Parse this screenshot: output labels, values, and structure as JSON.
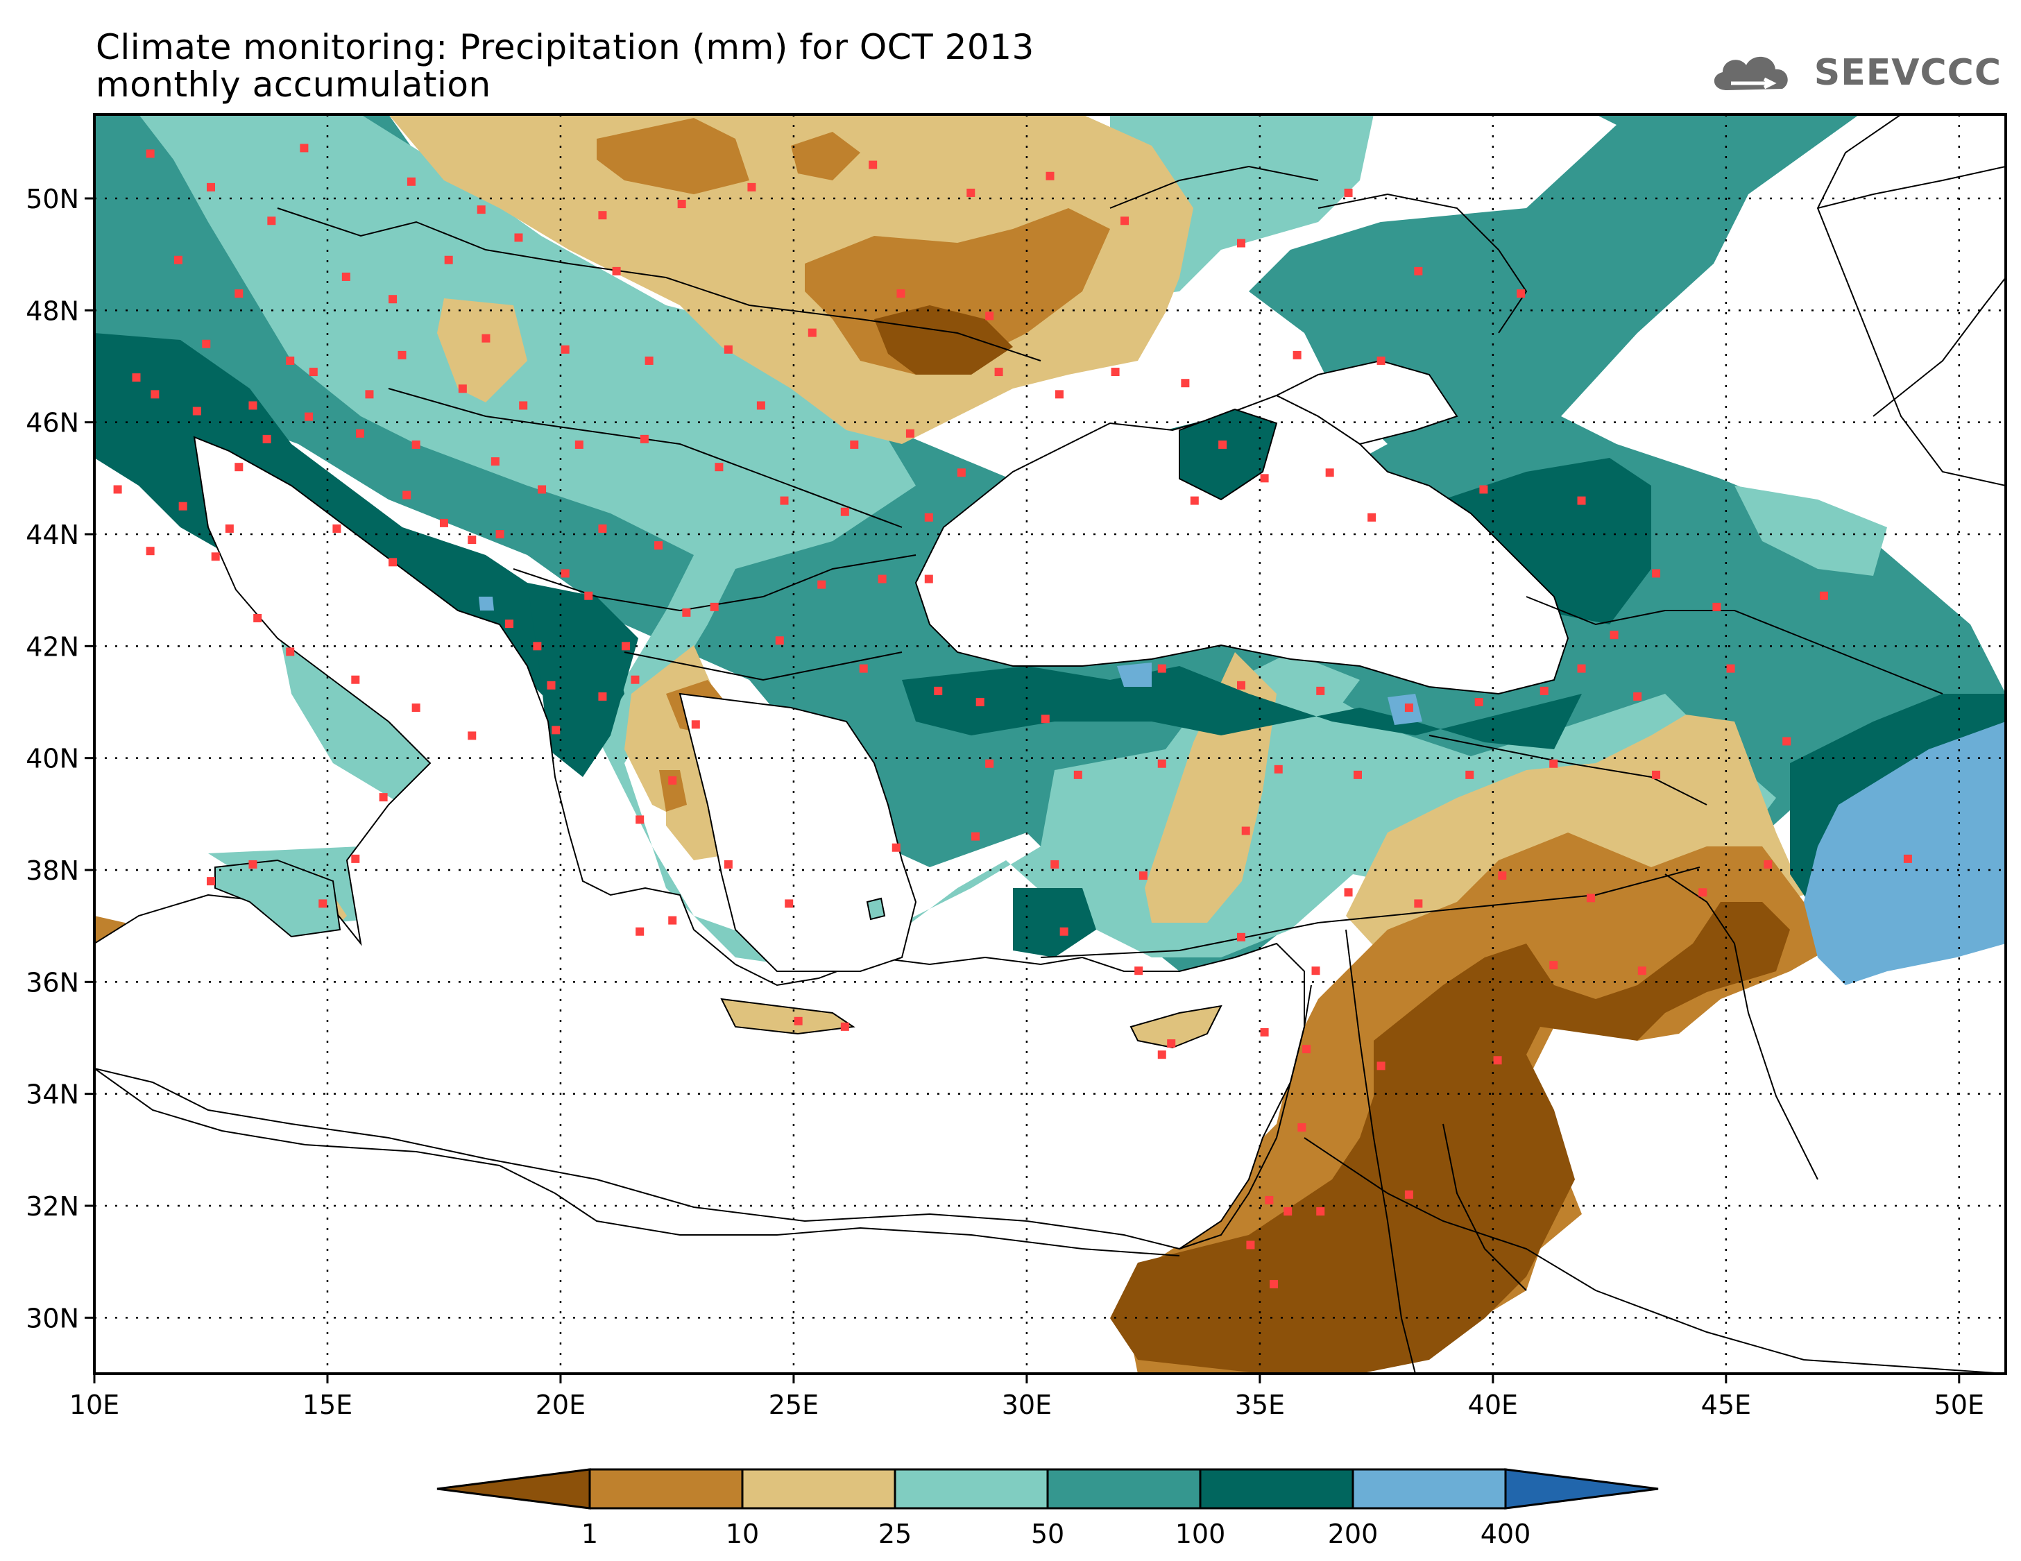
{
  "title": {
    "line1": "Climate monitoring: Precipitation (mm) for OCT 2013",
    "line2": "monthly accumulation"
  },
  "logo": {
    "text": "SEEVCCC",
    "icon": "cloud-icon"
  },
  "map": {
    "lon_range": [
      10,
      51
    ],
    "lat_range": [
      29,
      51.5
    ],
    "x_ticks": [
      {
        "value": 10,
        "label": "10E"
      },
      {
        "value": 15,
        "label": "15E"
      },
      {
        "value": 20,
        "label": "20E"
      },
      {
        "value": 25,
        "label": "25E"
      },
      {
        "value": 30,
        "label": "30E"
      },
      {
        "value": 35,
        "label": "35E"
      },
      {
        "value": 40,
        "label": "40E"
      },
      {
        "value": 45,
        "label": "45E"
      },
      {
        "value": 50,
        "label": "50E"
      }
    ],
    "y_ticks": [
      {
        "value": 30,
        "label": "30N"
      },
      {
        "value": 32,
        "label": "32N"
      },
      {
        "value": 34,
        "label": "34N"
      },
      {
        "value": 36,
        "label": "36N"
      },
      {
        "value": 38,
        "label": "38N"
      },
      {
        "value": 40,
        "label": "40N"
      },
      {
        "value": 42,
        "label": "42N"
      },
      {
        "value": 44,
        "label": "44N"
      },
      {
        "value": 46,
        "label": "46N"
      },
      {
        "value": 48,
        "label": "48N"
      },
      {
        "value": 50,
        "label": "50N"
      }
    ],
    "grid": "dotted",
    "station_color": "#ff4040",
    "stations": [
      [
        11.2,
        50.8
      ],
      [
        12.5,
        50.2
      ],
      [
        13.8,
        49.6
      ],
      [
        14.5,
        50.9
      ],
      [
        16.8,
        50.3
      ],
      [
        18.3,
        49.8
      ],
      [
        11.8,
        48.9
      ],
      [
        13.1,
        48.3
      ],
      [
        15.4,
        48.6
      ],
      [
        16.4,
        48.2
      ],
      [
        17.6,
        48.9
      ],
      [
        19.1,
        49.3
      ],
      [
        20.9,
        49.7
      ],
      [
        22.6,
        49.9
      ],
      [
        21.2,
        48.7
      ],
      [
        24.1,
        50.2
      ],
      [
        26.7,
        50.6
      ],
      [
        28.8,
        50.1
      ],
      [
        30.5,
        50.4
      ],
      [
        32.1,
        49.6
      ],
      [
        34.6,
        49.2
      ],
      [
        36.9,
        50.1
      ],
      [
        38.4,
        48.7
      ],
      [
        40.6,
        48.3
      ],
      [
        27.3,
        48.3
      ],
      [
        29.2,
        47.9
      ],
      [
        30.7,
        46.5
      ],
      [
        33.4,
        46.7
      ],
      [
        35.8,
        47.2
      ],
      [
        37.6,
        47.1
      ],
      [
        25.4,
        47.6
      ],
      [
        23.6,
        47.3
      ],
      [
        21.9,
        47.1
      ],
      [
        20.1,
        47.3
      ],
      [
        18.4,
        47.5
      ],
      [
        16.6,
        47.2
      ],
      [
        14.2,
        47.1
      ],
      [
        12.4,
        47.4
      ],
      [
        11.3,
        46.5
      ],
      [
        13.4,
        46.3
      ],
      [
        14.6,
        46.1
      ],
      [
        15.7,
        45.8
      ],
      [
        16.9,
        45.6
      ],
      [
        18.6,
        45.3
      ],
      [
        20.4,
        45.6
      ],
      [
        21.8,
        45.7
      ],
      [
        23.4,
        45.2
      ],
      [
        24.8,
        44.6
      ],
      [
        26.1,
        44.4
      ],
      [
        27.9,
        44.3
      ],
      [
        28.6,
        45.1
      ],
      [
        19.6,
        44.8
      ],
      [
        20.9,
        44.1
      ],
      [
        22.1,
        43.8
      ],
      [
        18.1,
        43.9
      ],
      [
        16.4,
        43.5
      ],
      [
        15.2,
        44.1
      ],
      [
        13.1,
        45.2
      ],
      [
        11.9,
        44.5
      ],
      [
        12.6,
        43.6
      ],
      [
        13.5,
        42.5
      ],
      [
        14.2,
        41.9
      ],
      [
        15.6,
        41.4
      ],
      [
        16.9,
        40.9
      ],
      [
        18.1,
        40.4
      ],
      [
        16.2,
        39.3
      ],
      [
        15.6,
        38.2
      ],
      [
        13.4,
        38.1
      ],
      [
        14.9,
        37.4
      ],
      [
        12.5,
        37.8
      ],
      [
        18.9,
        42.4
      ],
      [
        19.5,
        42.0
      ],
      [
        20.6,
        42.9
      ],
      [
        21.4,
        42.0
      ],
      [
        22.7,
        42.6
      ],
      [
        23.3,
        42.7
      ],
      [
        24.7,
        42.1
      ],
      [
        25.6,
        43.1
      ],
      [
        26.9,
        43.2
      ],
      [
        27.9,
        43.2
      ],
      [
        20.9,
        41.1
      ],
      [
        21.6,
        41.4
      ],
      [
        22.9,
        40.6
      ],
      [
        22.4,
        39.6
      ],
      [
        21.7,
        38.9
      ],
      [
        23.6,
        38.1
      ],
      [
        22.4,
        37.1
      ],
      [
        24.9,
        37.4
      ],
      [
        21.7,
        36.9
      ],
      [
        25.1,
        35.3
      ],
      [
        26.1,
        35.2
      ],
      [
        19.9,
        40.5
      ],
      [
        19.8,
        41.3
      ],
      [
        26.5,
        41.6
      ],
      [
        28.1,
        41.2
      ],
      [
        29.0,
        41.0
      ],
      [
        30.4,
        40.7
      ],
      [
        32.9,
        41.6
      ],
      [
        34.6,
        41.3
      ],
      [
        36.3,
        41.2
      ],
      [
        38.2,
        40.9
      ],
      [
        39.7,
        41.0
      ],
      [
        41.1,
        41.2
      ],
      [
        43.1,
        41.1
      ],
      [
        29.2,
        39.9
      ],
      [
        31.1,
        39.7
      ],
      [
        32.9,
        39.9
      ],
      [
        35.4,
        39.8
      ],
      [
        37.1,
        39.7
      ],
      [
        39.5,
        39.7
      ],
      [
        41.3,
        39.9
      ],
      [
        43.5,
        39.7
      ],
      [
        27.2,
        38.4
      ],
      [
        28.9,
        38.6
      ],
      [
        30.6,
        38.1
      ],
      [
        32.5,
        37.9
      ],
      [
        34.7,
        38.7
      ],
      [
        36.9,
        37.6
      ],
      [
        38.4,
        37.4
      ],
      [
        40.2,
        37.9
      ],
      [
        42.1,
        37.5
      ],
      [
        30.8,
        36.9
      ],
      [
        32.4,
        36.2
      ],
      [
        34.6,
        36.8
      ],
      [
        36.2,
        36.2
      ],
      [
        35.1,
        35.1
      ],
      [
        36.0,
        34.8
      ],
      [
        35.9,
        33.4
      ],
      [
        35.2,
        32.1
      ],
      [
        35.6,
        31.9
      ],
      [
        34.8,
        31.3
      ],
      [
        35.3,
        30.6
      ],
      [
        36.3,
        31.9
      ],
      [
        38.2,
        32.2
      ],
      [
        37.6,
        34.5
      ],
      [
        40.1,
        34.6
      ],
      [
        41.3,
        36.3
      ],
      [
        43.2,
        36.2
      ],
      [
        44.5,
        37.6
      ],
      [
        45.9,
        38.1
      ],
      [
        46.3,
        40.3
      ],
      [
        45.1,
        41.6
      ],
      [
        44.8,
        42.7
      ],
      [
        43.5,
        43.3
      ],
      [
        42.6,
        42.2
      ],
      [
        41.9,
        41.6
      ],
      [
        47.1,
        42.9
      ],
      [
        48.9,
        38.2
      ],
      [
        33.1,
        34.9
      ],
      [
        32.9,
        34.7
      ],
      [
        34.2,
        45.6
      ],
      [
        35.1,
        45.0
      ],
      [
        33.6,
        44.6
      ],
      [
        36.5,
        45.1
      ],
      [
        39.8,
        44.8
      ],
      [
        41.9,
        44.6
      ],
      [
        37.4,
        44.3
      ],
      [
        19.2,
        46.3
      ],
      [
        17.9,
        46.6
      ],
      [
        24.3,
        46.3
      ],
      [
        26.3,
        45.6
      ],
      [
        27.5,
        45.8
      ],
      [
        29.4,
        46.9
      ],
      [
        31.9,
        46.9
      ],
      [
        12.9,
        44.1
      ],
      [
        11.2,
        43.7
      ],
      [
        10.5,
        44.8
      ],
      [
        10.9,
        46.8
      ],
      [
        12.2,
        46.2
      ],
      [
        13.7,
        45.7
      ],
      [
        14.7,
        46.9
      ],
      [
        15.9,
        46.5
      ],
      [
        16.7,
        44.7
      ],
      [
        17.5,
        44.2
      ],
      [
        18.7,
        44.0
      ],
      [
        20.1,
        43.3
      ]
    ],
    "colorbar": {
      "thresholds": [
        "1",
        "10",
        "25",
        "50",
        "100",
        "200",
        "400"
      ],
      "colors": [
        "#8c510a",
        "#bf812d",
        "#dfc27d",
        "#80cdc1",
        "#35978f",
        "#01665e",
        "#6baed6",
        "#2166ac"
      ],
      "extend": "both"
    }
  }
}
